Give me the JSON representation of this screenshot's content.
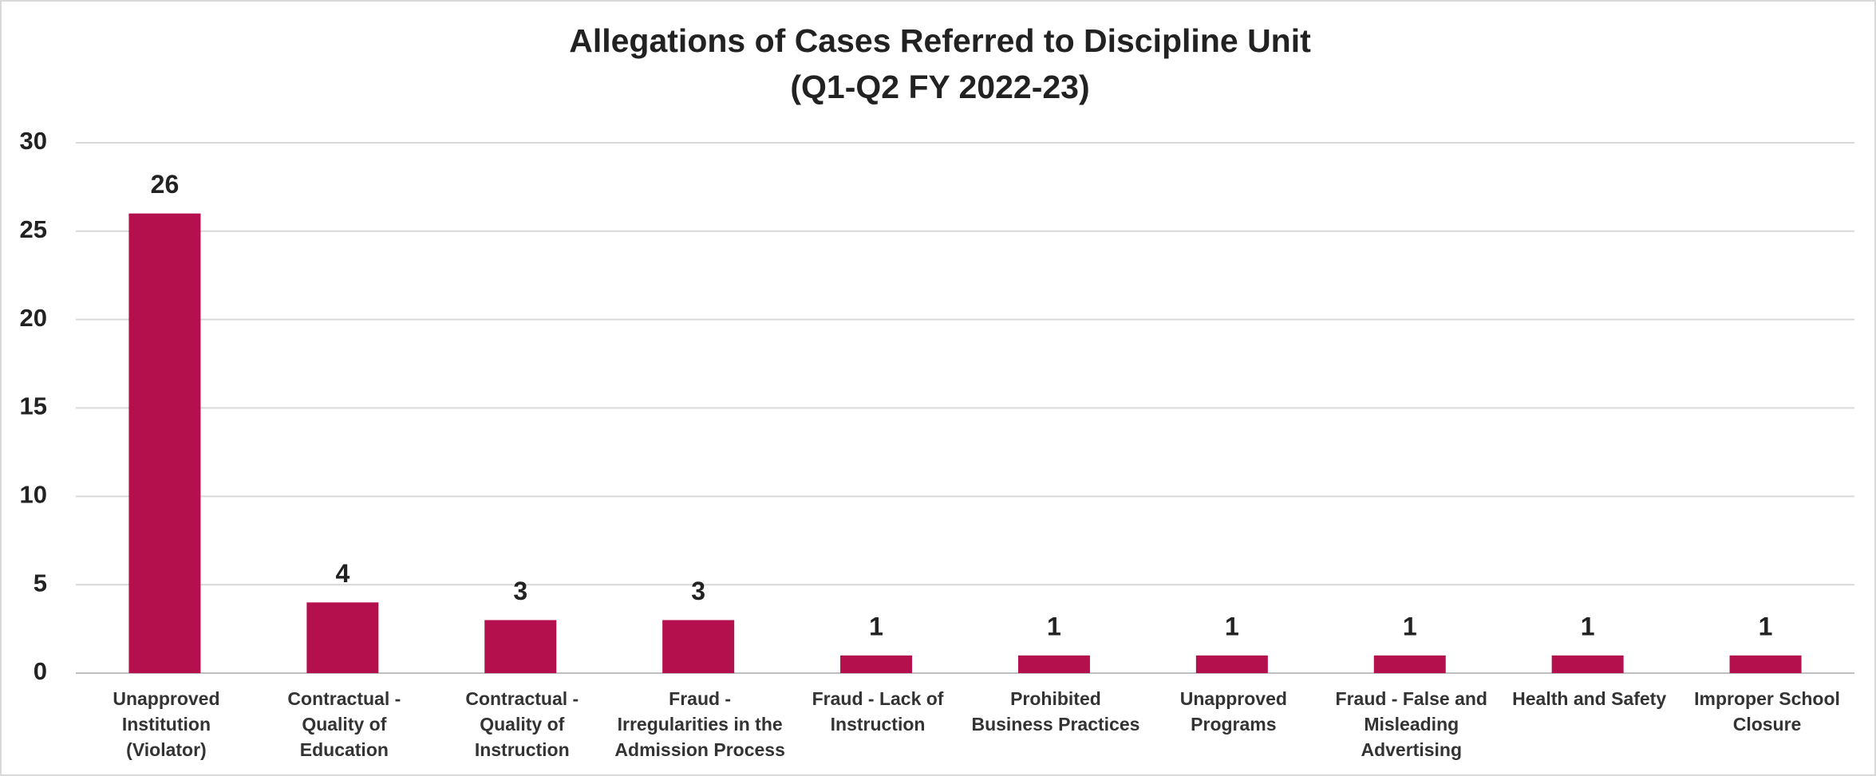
{
  "chart_data": {
    "type": "bar",
    "title": "Allegations of Cases Referred to Discipline Unit",
    "subtitle": "(Q1-Q2 FY 2022-23)",
    "categories": [
      "Unapproved Institution (Violator)",
      "Contractual - Quality of Education",
      "Contractual - Quality of Instruction",
      "Fraud - Irregularities in the Admission Process",
      "Fraud - Lack of Instruction",
      "Prohibited Business Practices",
      "Unapproved Programs",
      "Fraud - False and Misleading Advertising",
      "Health and Safety",
      "Improper School Closure"
    ],
    "values": [
      26,
      4,
      3,
      3,
      1,
      1,
      1,
      1,
      1,
      1
    ],
    "color": "#b5104e",
    "ylim": [
      0,
      30
    ],
    "yticks": [
      0,
      5,
      10,
      15,
      20,
      25,
      30
    ],
    "grid": true
  }
}
